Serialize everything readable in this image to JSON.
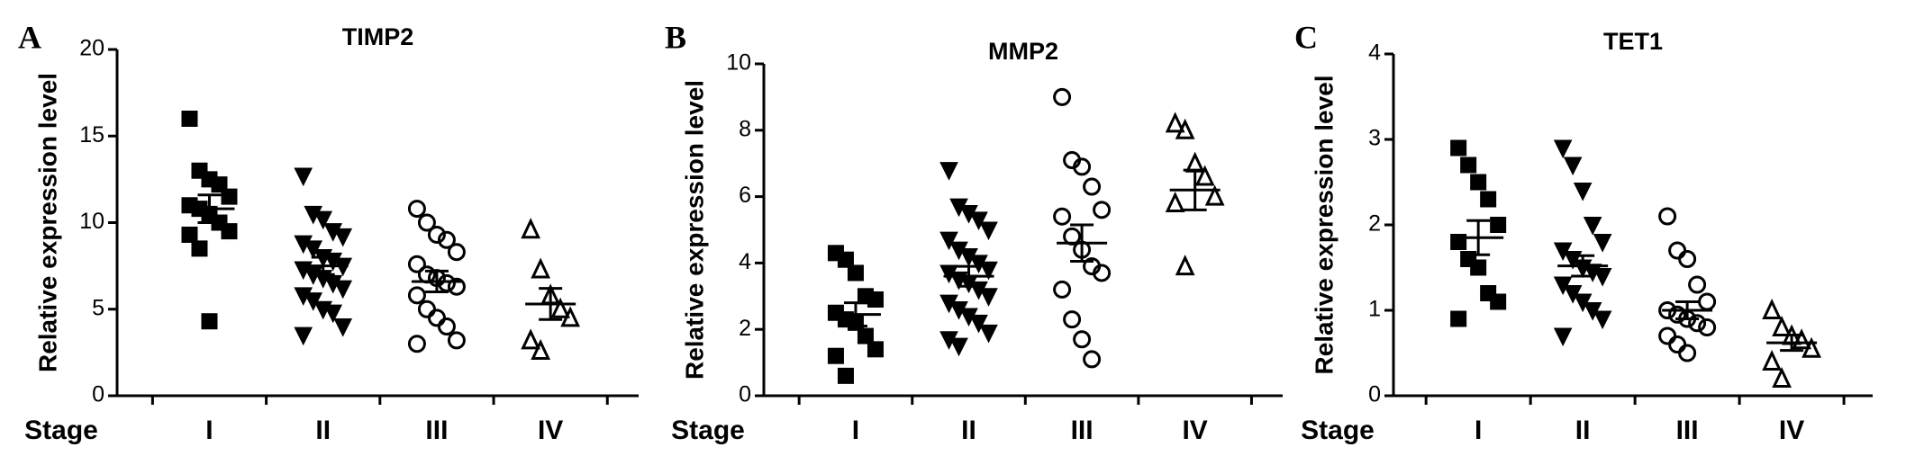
{
  "chart_data": [
    {
      "type": "strip",
      "panel_label": "A",
      "title": "TIMP2",
      "ylabel": "Relative expression level",
      "xlabel": "Stage",
      "categories": [
        "I",
        "II",
        "III",
        "IV"
      ],
      "groups": [
        [
          16,
          13,
          12.5,
          12.2,
          11.5,
          11,
          10.8,
          10.5,
          10,
          9.5,
          9.3,
          8.5,
          4.3
        ],
        [
          12.7,
          10.5,
          10.2,
          9.5,
          9.2,
          8.8,
          8.5,
          8,
          7.8,
          7.5,
          7.3,
          7,
          6.8,
          6.5,
          6.2,
          5.8,
          5.5,
          5,
          4.8,
          4,
          3.5
        ],
        [
          10.8,
          10,
          9.3,
          9,
          8.3,
          7.6,
          7,
          6.8,
          6.5,
          6.3,
          5.8,
          5,
          4.5,
          4,
          3.2,
          3
        ],
        [
          9.6,
          7.3,
          5.8,
          5,
          4.5,
          3.2,
          2.6
        ]
      ],
      "means": [
        10.8,
        7.5,
        6.6,
        5.3
      ],
      "sem": [
        0.8,
        0.5,
        0.6,
        0.9
      ],
      "ylim": [
        0,
        20
      ],
      "yticks": [
        0,
        5,
        10,
        15,
        20
      ],
      "markers": [
        "square",
        "triangle-down",
        "circle",
        "triangle-up"
      ],
      "filled": [
        true,
        true,
        false,
        false
      ],
      "color": "#000000"
    },
    {
      "type": "strip",
      "panel_label": "B",
      "title": "MMP2",
      "ylabel": "Relative expression level",
      "xlabel": "Stage",
      "categories": [
        "I",
        "II",
        "III",
        "IV"
      ],
      "groups": [
        [
          4.3,
          4.1,
          3.7,
          3,
          2.9,
          2.5,
          2.3,
          2.2,
          1.8,
          1.4,
          1.2,
          0.6
        ],
        [
          6.8,
          5.7,
          5.5,
          5.3,
          5,
          4.7,
          4.4,
          4.2,
          4,
          3.8,
          3.7,
          3.5,
          3.4,
          3.2,
          3,
          2.8,
          2.6,
          2.4,
          2.2,
          1.9,
          1.7,
          1.5
        ],
        [
          9,
          7.1,
          6.9,
          6.3,
          5.6,
          5.4,
          4.8,
          4.4,
          3.9,
          3.7,
          3.2,
          2.3,
          1.7,
          1.1
        ],
        [
          8.2,
          8,
          7,
          6.6,
          6,
          5.8,
          3.9
        ]
      ],
      "means": [
        2.45,
        3.6,
        4.6,
        6.2
      ],
      "sem": [
        0.35,
        0.3,
        0.55,
        0.6
      ],
      "ylim": [
        0,
        10
      ],
      "yticks": [
        0,
        2,
        4,
        6,
        8,
        10
      ],
      "markers": [
        "square",
        "triangle-down",
        "circle",
        "triangle-up"
      ],
      "filled": [
        true,
        true,
        false,
        false
      ],
      "color": "#000000"
    },
    {
      "type": "strip",
      "panel_label": "C",
      "title": "TET1",
      "ylabel": "Relative expression level",
      "xlabel": "Stage",
      "categories": [
        "I",
        "II",
        "III",
        "IV"
      ],
      "groups": [
        [
          2.9,
          2.7,
          2.5,
          2.3,
          2,
          1.8,
          1.6,
          1.5,
          1.2,
          1.1,
          0.9
        ],
        [
          2.9,
          2.7,
          2.4,
          2,
          1.8,
          1.7,
          1.6,
          1.5,
          1.45,
          1.4,
          1.3,
          1.2,
          1.1,
          1,
          0.9,
          0.7
        ],
        [
          2.1,
          1.7,
          1.6,
          1.3,
          1.1,
          1,
          0.95,
          0.9,
          0.85,
          0.8,
          0.7,
          0.6,
          0.5
        ],
        [
          1,
          0.8,
          0.7,
          0.65,
          0.55,
          0.4,
          0.2
        ]
      ],
      "means": [
        1.85,
        1.52,
        1,
        0.62
      ],
      "sem": [
        0.2,
        0.12,
        0.1,
        0.09
      ],
      "ylim": [
        0,
        4
      ],
      "yticks": [
        0,
        1,
        2,
        3,
        4
      ],
      "markers": [
        "square",
        "triangle-down",
        "circle",
        "triangle-up"
      ],
      "filled": [
        true,
        true,
        false,
        false
      ],
      "color": "#000000"
    }
  ]
}
